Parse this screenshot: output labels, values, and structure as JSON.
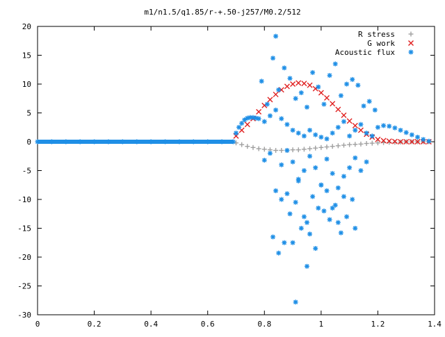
{
  "chart_data": {
    "type": "scatter",
    "title": "m1/n1.5/q1.85/r-+.50-j257/M0.2/512",
    "xlabel": "",
    "ylabel": "",
    "xlim": [
      0,
      1.4
    ],
    "ylim": [
      -30,
      20
    ],
    "x_ticks": [
      0,
      0.2,
      0.4,
      0.6,
      0.8,
      1,
      1.2,
      1.4
    ],
    "x_tick_labels": [
      "0",
      "0.2",
      "0.4",
      "0.6",
      "0.8",
      "1",
      "1.2",
      "1.4"
    ],
    "y_ticks": [
      20,
      15,
      10,
      5,
      0,
      -5,
      -10,
      -15,
      -20,
      -25,
      -30
    ],
    "y_tick_labels": [
      "20",
      "15",
      "10",
      "5",
      "0",
      "-5",
      "-10",
      "-15",
      "-20",
      "-25",
      "-30"
    ],
    "grid": false,
    "legend_position": "top-right",
    "series": [
      {
        "name": "R stress",
        "marker": "+",
        "color": "#a0a0a0",
        "x": [
          0.7,
          0.72,
          0.74,
          0.76,
          0.78,
          0.8,
          0.82,
          0.84,
          0.86,
          0.88,
          0.9,
          0.92,
          0.94,
          0.96,
          0.98,
          1.0,
          1.02,
          1.04,
          1.06,
          1.08,
          1.1,
          1.12,
          1.14,
          1.16,
          1.18,
          1.2,
          1.22,
          1.24,
          1.26,
          1.28,
          1.3,
          1.32,
          1.34,
          1.36,
          1.38
        ],
        "y": [
          -0.2,
          -0.5,
          -0.8,
          -1.0,
          -1.2,
          -1.3,
          -1.4,
          -1.5,
          -1.5,
          -1.5,
          -1.4,
          -1.4,
          -1.3,
          -1.2,
          -1.1,
          -1.0,
          -0.9,
          -0.8,
          -0.7,
          -0.6,
          -0.5,
          -0.45,
          -0.4,
          -0.3,
          -0.25,
          -0.2,
          -0.15,
          -0.1,
          -0.1,
          -0.05,
          0,
          0,
          0,
          0,
          0
        ]
      },
      {
        "name": "G work",
        "marker": "x",
        "color": "#e02020",
        "x": [
          0.7,
          0.72,
          0.74,
          0.76,
          0.78,
          0.8,
          0.82,
          0.84,
          0.86,
          0.88,
          0.9,
          0.92,
          0.94,
          0.96,
          0.98,
          1.0,
          1.02,
          1.04,
          1.06,
          1.08,
          1.1,
          1.12,
          1.14,
          1.16,
          1.18,
          1.2,
          1.22,
          1.24,
          1.26,
          1.28,
          1.3,
          1.32,
          1.34,
          1.36,
          1.38
        ],
        "y": [
          1.0,
          2.0,
          3.0,
          4.0,
          5.2,
          6.3,
          7.3,
          8.2,
          9.0,
          9.6,
          10.0,
          10.2,
          10.1,
          9.8,
          9.2,
          8.5,
          7.6,
          6.6,
          5.6,
          4.6,
          3.6,
          2.8,
          2.0,
          1.3,
          0.8,
          0.4,
          0.2,
          0.1,
          0.05,
          0,
          0,
          0,
          0,
          0,
          0
        ]
      },
      {
        "name": "Acoustic flux",
        "marker": "*",
        "color": "#1f8fe6",
        "x": [
          0,
          0.05,
          0.1,
          0.15,
          0.2,
          0.25,
          0.3,
          0.35,
          0.4,
          0.45,
          0.5,
          0.55,
          0.6,
          0.65,
          0.69,
          0.7,
          0.71,
          0.72,
          0.73,
          0.74,
          0.75,
          0.76,
          0.77,
          0.78,
          0.8,
          0.82,
          0.84,
          0.86,
          0.88,
          0.9,
          0.92,
          0.94,
          0.96,
          0.98,
          1.0,
          1.02,
          1.04,
          1.06,
          1.08,
          1.1,
          1.12,
          1.14,
          1.16,
          1.18,
          1.2,
          1.22,
          1.24,
          1.26,
          1.28,
          1.3,
          1.32,
          1.34,
          1.36,
          1.38,
          0.79,
          0.81,
          0.83,
          0.84,
          0.85,
          0.87,
          0.89,
          0.91,
          0.93,
          0.95,
          0.97,
          0.99,
          1.01,
          1.03,
          1.05,
          1.07,
          1.09,
          1.11,
          1.13,
          1.15,
          1.17,
          1.19,
          0.8,
          0.82,
          0.86,
          0.88,
          0.9,
          0.92,
          0.94,
          0.96,
          0.98,
          1.0,
          1.02,
          1.04,
          1.06,
          1.08,
          1.1,
          1.12,
          1.14,
          1.16,
          0.83,
          0.85,
          0.87,
          0.89,
          0.91,
          0.93,
          0.95,
          0.97,
          0.99,
          1.01,
          1.03,
          1.05,
          1.07,
          1.09,
          1.11,
          0.84,
          0.86,
          0.88,
          0.9,
          0.92,
          0.94,
          0.96,
          0.98,
          1.0,
          1.02,
          1.04,
          1.06,
          1.08,
          1.12,
          0.91,
          0.95
        ],
        "y": [
          0,
          0,
          0,
          0,
          0,
          0,
          0,
          0,
          0,
          0,
          0,
          0,
          0,
          0,
          0,
          1.5,
          2.5,
          3.2,
          3.8,
          4.1,
          4.2,
          4.2,
          4.1,
          4.0,
          3.5,
          4.5,
          5.5,
          4.0,
          3.0,
          2.0,
          1.5,
          1.0,
          2.0,
          1.2,
          0.8,
          0.5,
          1.5,
          2.5,
          3.5,
          1.0,
          2.0,
          3.0,
          1.5,
          1.0,
          2.5,
          2.8,
          2.7,
          2.4,
          2.0,
          1.6,
          1.2,
          0.8,
          0.4,
          0.1,
          10.5,
          6.5,
          14.5,
          18.3,
          9.0,
          12.8,
          11.0,
          7.5,
          8.5,
          6.0,
          12.0,
          9.5,
          6.5,
          11.5,
          13.5,
          8.0,
          10.0,
          10.8,
          9.8,
          6.2,
          7.0,
          5.5,
          -3.2,
          -2.0,
          -4.0,
          -1.5,
          -3.5,
          -6.5,
          -5.0,
          -2.5,
          -4.5,
          -7.5,
          -3.0,
          -5.5,
          -8.0,
          -6.0,
          -4.5,
          -2.8,
          -5.0,
          -3.5,
          -16.5,
          -19.3,
          -17.5,
          -12.5,
          -10.5,
          -15.0,
          -14.0,
          -9.5,
          -11.5,
          -12.0,
          -13.5,
          -11.0,
          -15.8,
          -13.0,
          -10.0,
          -8.5,
          -10.0,
          -9.0,
          -17.5,
          -6.8,
          -13.0,
          -16.0,
          -18.5,
          -7.5,
          -8.5,
          -11.5,
          -14.0,
          -9.5,
          -15.0,
          -27.8,
          -21.6
        ]
      }
    ]
  }
}
